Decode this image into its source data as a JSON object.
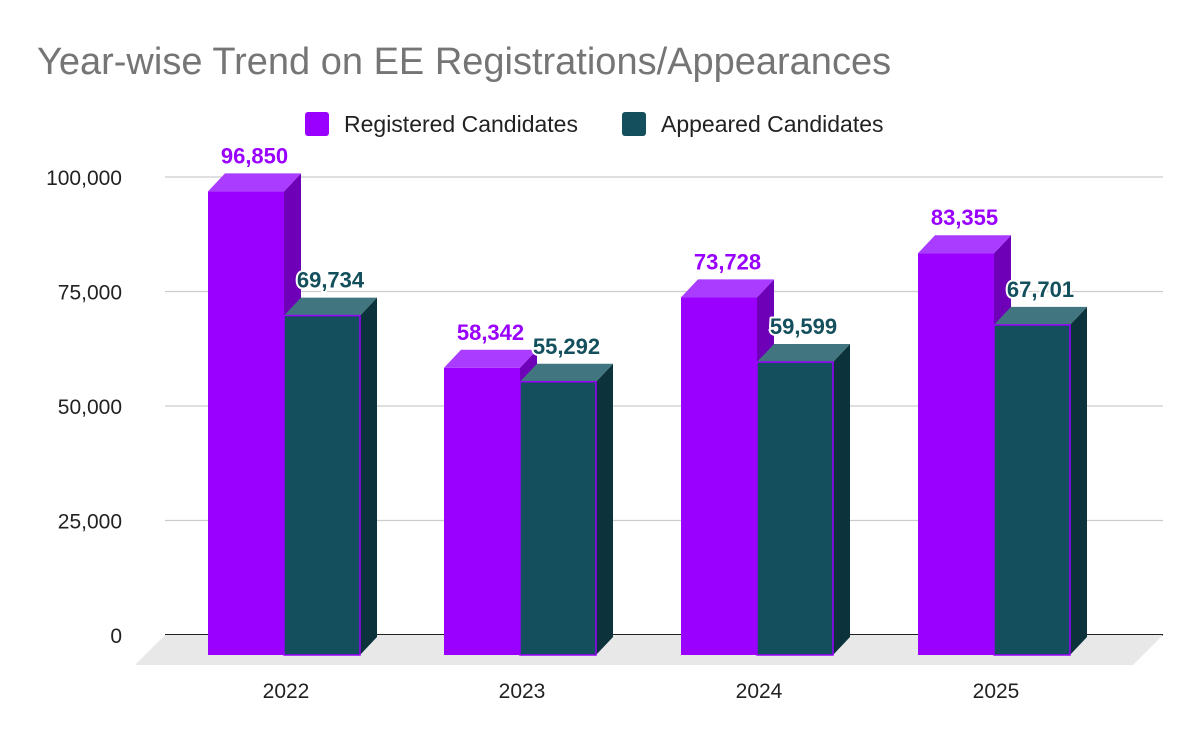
{
  "chart_data": {
    "type": "bar",
    "title": "Year-wise Trend on EE Registrations/Appearances",
    "xlabel": "",
    "ylabel": "",
    "categories": [
      "2022",
      "2023",
      "2024",
      "2025"
    ],
    "series": [
      {
        "name": "Registered Candidates",
        "values": [
          96850,
          58342,
          73728,
          83355
        ],
        "labels": [
          "96,850",
          "58,342",
          "73,728",
          "83,355"
        ],
        "color": "#9900ff",
        "top_color": "#a93cff",
        "side_color": "#6e00b8",
        "label_color": "#9900ff"
      },
      {
        "name": "Appeared Candidates",
        "values": [
          69734,
          55292,
          59599,
          67701
        ],
        "labels": [
          "69,734",
          "55,292",
          "59,599",
          "67,701"
        ],
        "color": "#134f5c",
        "top_color": "#417680",
        "side_color": "#0c323b",
        "label_color": "#134f5c"
      }
    ],
    "ylim": [
      0,
      100000
    ],
    "yticks": [
      0,
      25000,
      50000,
      75000,
      100000
    ],
    "ytick_labels": [
      "0",
      "25,000",
      "50,000",
      "75,000",
      "100,000"
    ],
    "grid": true,
    "legend_position": "top-center",
    "style": "3d-bar"
  }
}
